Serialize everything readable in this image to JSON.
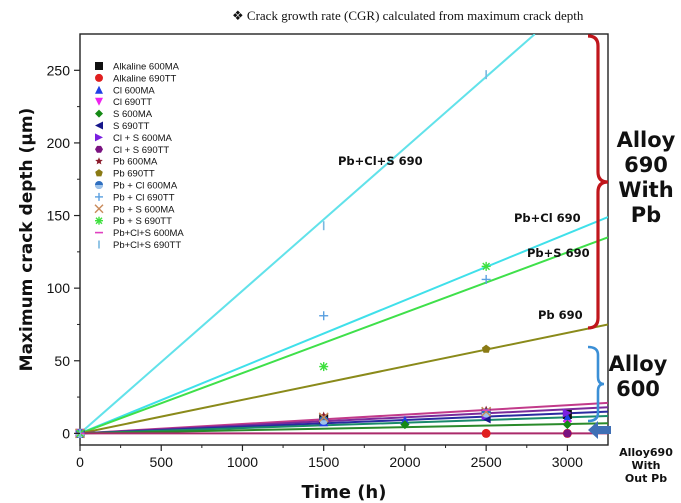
{
  "header_note": "❖ Crack growth rate (CGR) calculated from maximum crack depth",
  "side_labels": {
    "alloy690_with_pb": [
      "Alloy",
      "690",
      "With",
      "Pb"
    ],
    "alloy600": [
      "Alloy",
      "600"
    ],
    "alloy690_without_pb": [
      "Alloy690",
      "With",
      "Out Pb"
    ]
  },
  "colors": {
    "bracket_690": "#c0161c",
    "bracket_600": "#3b8fd6",
    "arrow_nopb": "#3f6fb5"
  },
  "chart_data": {
    "type": "scatter",
    "xlabel": "Time (h)",
    "ylabel": "Maximum crack depth (μm)",
    "xlim": [
      0,
      3250
    ],
    "ylim": [
      -8,
      275
    ],
    "xticks": [
      0,
      500,
      1000,
      1500,
      2000,
      2500,
      3000
    ],
    "yticks": [
      0,
      50,
      100,
      150,
      200,
      250
    ],
    "grid": false,
    "legend_position": "top-left",
    "series": [
      {
        "name": "Alkaline 600MA",
        "marker": "square",
        "color": "#111111",
        "x": [
          0,
          1500,
          2500,
          3000
        ],
        "y": [
          0,
          10,
          14,
          13
        ]
      },
      {
        "name": "Alkaline 690TT",
        "marker": "circle",
        "color": "#e01f1f",
        "x": [
          0,
          2500,
          3000
        ],
        "y": [
          0,
          0,
          0
        ]
      },
      {
        "name": "Cl 600MA",
        "marker": "triangle-up",
        "color": "#1f3fe6",
        "x": [
          0,
          1500,
          2000,
          3000
        ],
        "y": [
          0,
          8,
          9,
          11
        ]
      },
      {
        "name": "Cl 690TT",
        "marker": "triangle-down",
        "color": "#ee22ee",
        "x": [
          0,
          3000
        ],
        "y": [
          0,
          6
        ]
      },
      {
        "name": "S 600MA",
        "marker": "diamond",
        "color": "#158a15",
        "x": [
          0,
          2000,
          3000
        ],
        "y": [
          0,
          6,
          6
        ]
      },
      {
        "name": "S 690TT",
        "marker": "triangle-left",
        "color": "#16168a",
        "x": [
          0,
          2500
        ],
        "y": [
          0,
          10
        ]
      },
      {
        "name": "Cl + S 600MA",
        "marker": "triangle-right",
        "color": "#7a1fe0",
        "x": [
          0,
          2500,
          3000
        ],
        "y": [
          0,
          12,
          14
        ]
      },
      {
        "name": "Cl + S 690TT",
        "marker": "hexagon",
        "color": "#7a1280",
        "x": [
          0,
          3000
        ],
        "y": [
          0,
          0
        ]
      },
      {
        "name": "Pb 600MA",
        "marker": "star",
        "color": "#8a1a2a",
        "x": [
          0,
          1500,
          2500
        ],
        "y": [
          0,
          12,
          16
        ]
      },
      {
        "name": "Pb 690TT",
        "marker": "pentagon",
        "color": "#8a7a14",
        "x": [
          0,
          2500
        ],
        "y": [
          0,
          58
        ]
      },
      {
        "name": "Pb + Cl 600MA",
        "marker": "circle-half",
        "color": "#2f6fc0",
        "x": [
          0,
          1500,
          2500
        ],
        "y": [
          0,
          9,
          14
        ]
      },
      {
        "name": "Pb + Cl 690TT",
        "marker": "plus",
        "color": "#5aa0e0",
        "x": [
          0,
          1500,
          2500
        ],
        "y": [
          0,
          81,
          106
        ]
      },
      {
        "name": "Pb + S 600MA",
        "marker": "x",
        "color": "#c88a5a",
        "x": [
          0,
          1500,
          2500
        ],
        "y": [
          0,
          11,
          15
        ]
      },
      {
        "name": "Pb + S 690TT",
        "marker": "asterisk",
        "color": "#3ee03e",
        "x": [
          0,
          1500,
          2500
        ],
        "y": [
          0,
          46,
          115
        ]
      },
      {
        "name": "Pb+Cl+S 600MA",
        "marker": "dash",
        "color": "#e040c0",
        "x": [
          0,
          2500
        ],
        "y": [
          0,
          16
        ]
      },
      {
        "name": "Pb+Cl+S 690TT",
        "marker": "vbar",
        "color": "#7ab8e0",
        "x": [
          0,
          1500,
          2500
        ],
        "y": [
          0,
          143,
          247
        ]
      }
    ],
    "fit_lines": [
      {
        "label": "Pb+Cl+S 690",
        "color": "#62e2ea",
        "x": [
          0,
          2800
        ],
        "y": [
          0,
          275
        ]
      },
      {
        "label": "Pb+Cl 690",
        "color": "#3fe0ea",
        "x": [
          0,
          3250
        ],
        "y": [
          0,
          149
        ]
      },
      {
        "label": "Pb+S 690",
        "color": "#3fe04a",
        "x": [
          0,
          3250
        ],
        "y": [
          0,
          135
        ]
      },
      {
        "label": "Pb 690",
        "color": "#8a8a1a",
        "x": [
          0,
          3250
        ],
        "y": [
          0,
          75
        ]
      },
      {
        "label": "",
        "color": "#c23a8a",
        "x": [
          0,
          3250
        ],
        "y": [
          0,
          21
        ]
      },
      {
        "label": "",
        "color": "#7a2a9a",
        "x": [
          0,
          3250
        ],
        "y": [
          0,
          18
        ]
      },
      {
        "label": "",
        "color": "#2a2aa0",
        "x": [
          0,
          3250
        ],
        "y": [
          0,
          15
        ]
      },
      {
        "label": "",
        "color": "#1a8a6a",
        "x": [
          0,
          3250
        ],
        "y": [
          0,
          12
        ]
      },
      {
        "label": "",
        "color": "#2a8a2a",
        "x": [
          0,
          3250
        ],
        "y": [
          0,
          7
        ]
      },
      {
        "label": "",
        "color": "#aa2a6a",
        "x": [
          0,
          3250
        ],
        "y": [
          0,
          0
        ]
      }
    ]
  }
}
